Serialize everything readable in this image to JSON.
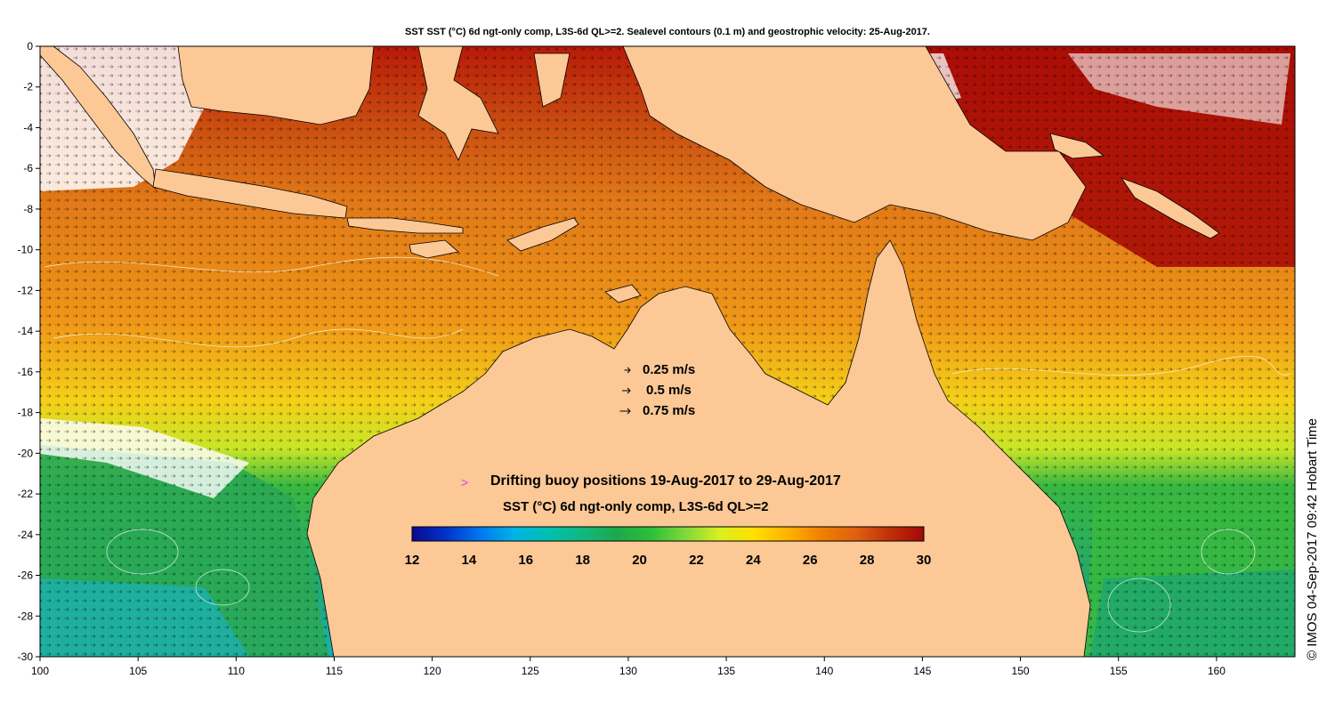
{
  "title": "SST SST (°C) 6d ngt-only comp, L3S-6d QL>=2. Sealevel contours (0.1 m) and geostrophic velocity: 25-Aug-2017.",
  "map": {
    "lon_range": [
      100,
      164
    ],
    "lat_range": [
      -30,
      0
    ],
    "x_ticks": [
      "100",
      "105",
      "110",
      "115",
      "120",
      "125",
      "130",
      "135",
      "140",
      "145",
      "150",
      "155",
      "160"
    ],
    "x_tick_values": [
      100,
      105,
      110,
      115,
      120,
      125,
      130,
      135,
      140,
      145,
      150,
      155,
      160
    ],
    "y_ticks": [
      "0",
      "-2",
      "-4",
      "-6",
      "-8",
      "-10",
      "-12",
      "-14",
      "-16",
      "-18",
      "-20",
      "-22",
      "-24",
      "-26",
      "-28",
      "-30"
    ],
    "y_tick_values": [
      0,
      -2,
      -4,
      -6,
      -8,
      -10,
      -12,
      -14,
      -16,
      -18,
      -20,
      -22,
      -24,
      -26,
      -28,
      -30
    ],
    "land_color": "#fbc896",
    "cloud_color": "#ffffff"
  },
  "velocity_scale": [
    {
      "label": "0.25 m/s",
      "speed": 0.25
    },
    {
      "label": "0.5 m/s",
      "speed": 0.5
    },
    {
      "label": "0.75 m/s",
      "speed": 0.75
    }
  ],
  "buoy_legend": {
    "symbol": ">",
    "symbol_color": "#e040e0",
    "label": "Drifting buoy positions 19-Aug-2017 to 29-Aug-2017"
  },
  "colorbar": {
    "title": "SST (°C) 6d ngt-only comp, L3S-6d QL>=2",
    "range": [
      12,
      30
    ],
    "tick_labels": [
      "12",
      "14",
      "16",
      "18",
      "20",
      "22",
      "24",
      "26",
      "28",
      "30"
    ],
    "tick_values": [
      12,
      14,
      16,
      18,
      20,
      22,
      24,
      26,
      28,
      30
    ],
    "colors": [
      "#0a0a8c",
      "#0033cc",
      "#0077ee",
      "#00b4e6",
      "#00c0b0",
      "#10b880",
      "#1ea84a",
      "#2cc03a",
      "#7ed83a",
      "#d8f020",
      "#ffe000",
      "#ffb300",
      "#f08000",
      "#e06010",
      "#c03008",
      "#a00808"
    ]
  },
  "credit": "© IMOS 04-Sep-2017 09:42 Hobart Time"
}
